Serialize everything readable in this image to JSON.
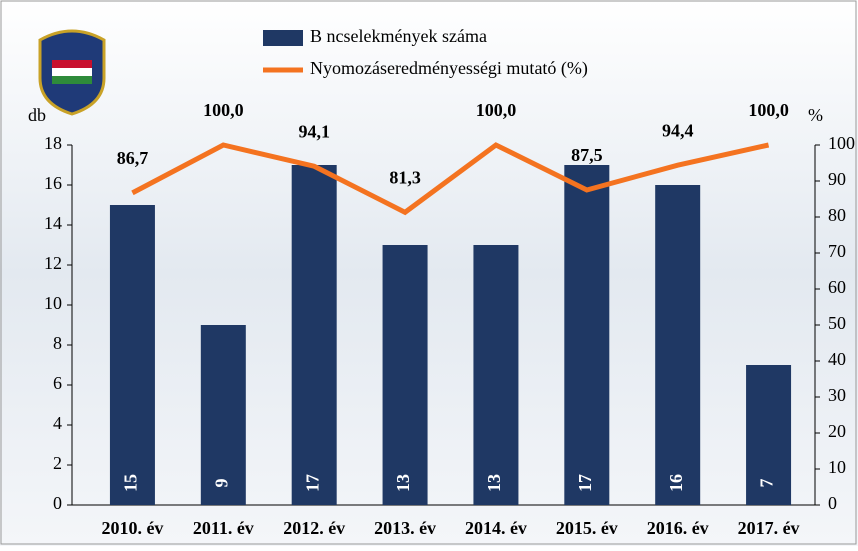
{
  "chart_data": {
    "type": "bar_line",
    "categories": [
      "2010. év",
      "2011. év",
      "2012. év",
      "2013. év",
      "2014. év",
      "2015. év",
      "2016. év",
      "2017. év"
    ],
    "series": [
      {
        "name": "B  ncselekmények száma",
        "type": "bar",
        "color": "#1f3864",
        "values": [
          15,
          9,
          17,
          13,
          13,
          17,
          16,
          7
        ]
      },
      {
        "name": "Nyomozáseredményességi mutató (%)",
        "type": "line",
        "axis": "y2",
        "color": "#f47320",
        "values": [
          86.7,
          100,
          94.1,
          81.3,
          100,
          87.5,
          94.4,
          100
        ],
        "value_labels": [
          "86,7",
          "100,0",
          "94,1",
          "81,3",
          "100,0",
          "87,5",
          "94,4",
          "100,0"
        ]
      }
    ],
    "ylabel": "db",
    "y2label": "%",
    "ylim": [
      0,
      18
    ],
    "yticks": [
      0,
      2,
      4,
      6,
      8,
      10,
      12,
      14,
      16,
      18
    ],
    "y2lim": [
      0,
      100
    ],
    "y2ticks": [
      0,
      10,
      20,
      30,
      40,
      50,
      60,
      70,
      80,
      90,
      100
    ]
  }
}
